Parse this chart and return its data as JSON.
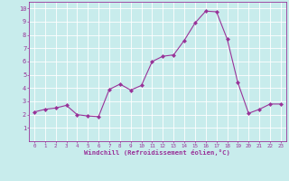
{
  "x": [
    0,
    1,
    2,
    3,
    4,
    5,
    6,
    7,
    8,
    9,
    10,
    11,
    12,
    13,
    14,
    15,
    16,
    17,
    18,
    19,
    20,
    21,
    22,
    23
  ],
  "y": [
    2.2,
    2.4,
    2.5,
    2.7,
    2.0,
    1.9,
    1.85,
    3.9,
    4.3,
    3.85,
    4.2,
    6.0,
    6.4,
    6.5,
    7.6,
    8.9,
    9.8,
    9.75,
    7.7,
    4.4,
    2.1,
    2.4,
    2.8,
    2.8
  ],
  "line_color": "#993399",
  "marker": "D",
  "marker_size": 2.0,
  "bg_color": "#c8ecec",
  "grid_color": "#aad4d4",
  "xlabel": "Windchill (Refroidissement éolien,°C)",
  "tick_color": "#993399",
  "xlim": [
    -0.5,
    23.5
  ],
  "ylim": [
    0,
    10.5
  ],
  "yticks": [
    1,
    2,
    3,
    4,
    5,
    6,
    7,
    8,
    9,
    10
  ],
  "xticks": [
    0,
    1,
    2,
    3,
    4,
    5,
    6,
    7,
    8,
    9,
    10,
    11,
    12,
    13,
    14,
    15,
    16,
    17,
    18,
    19,
    20,
    21,
    22,
    23
  ],
  "figsize": [
    3.2,
    2.0
  ],
  "dpi": 100
}
